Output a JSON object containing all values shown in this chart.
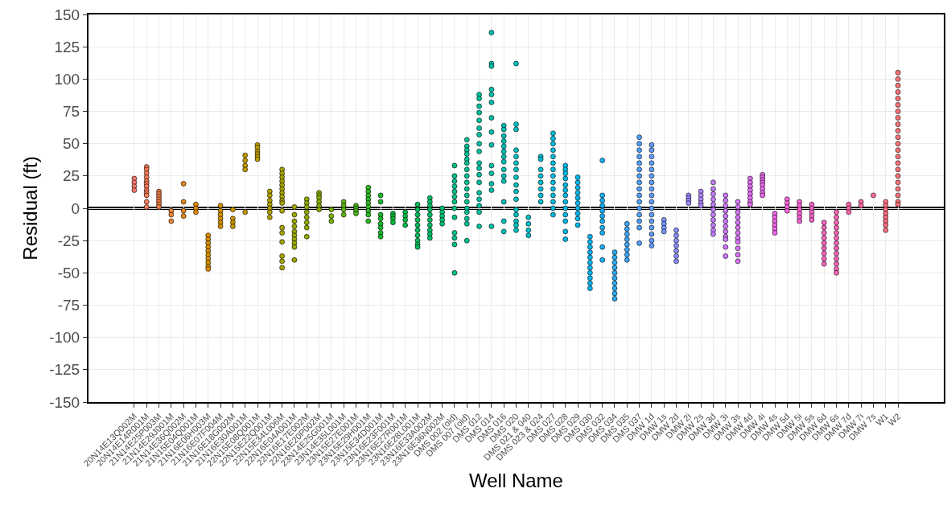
{
  "chart_data": {
    "type": "scatter",
    "xlabel": "Well Name",
    "ylabel": "Residual (ft)",
    "categories": [
      "20N14E13Q002M",
      "20N14E14R001M",
      "21N14E25P003M",
      "21N14E29J001M",
      "21N14E36Q002M",
      "21N15E04Q001M",
      "21N16E06H003M",
      "21N16E07F004M",
      "21N16E18G002M",
      "21N16E30A001M",
      "22N15E08Q001M",
      "22N15E22Q001M",
      "22N15E34L006M",
      "22N16E04A001M",
      "22N16E17E002M",
      "22N16E20P002M",
      "23N14E25G001M",
      "23N14E35L001M",
      "23N15E27E001M",
      "23N15E29H001M",
      "23N15E34D001M",
      "23N16E23F001M",
      "23N16E27R001M",
      "23N16E28L001M",
      "23N16E33A002M",
      "23N16E36N002M",
      "DMS 002 (old)",
      "DMS 007 (old)",
      "DMS 012",
      "DMS 014",
      "DMS 016",
      "DMS 020",
      "DMS 021 & 040",
      "DMS 023 & 024",
      "DMS 027",
      "DMS 028",
      "DMS 029",
      "DMS 030",
      "DMS 032",
      "DMS 034",
      "DMS 035",
      "DMS 037",
      "DMW 1d",
      "DMW 1s",
      "DMW 2d",
      "DMW 2i",
      "DMW 2s",
      "DMW 3d",
      "DMW 3i",
      "DMW 3s",
      "DMW 4d",
      "DMW 4i",
      "DMW 4s",
      "DMW 5d",
      "DMW 5i",
      "DMW 5s",
      "DMW 6d",
      "DMW 6s",
      "DMW 7d",
      "DMW 7i",
      "DMW 7s",
      "W1",
      "W2"
    ],
    "series": [
      {
        "color": "#F8766D",
        "x": [
          "20N14E13Q002M",
          "20N14E13Q002M",
          "20N14E13Q002M",
          "20N14E13Q002M"
        ],
        "values": [
          23,
          20,
          17,
          14
        ]
      },
      {
        "color": "#F37A58",
        "x": [
          "20N14E14R001M",
          "20N14E14R001M",
          "20N14E14R001M",
          "20N14E14R001M",
          "20N14E14R001M",
          "20N14E14R001M",
          "20N14E14R001M",
          "20N14E14R001M",
          "20N14E14R001M",
          "20N14E14R001M",
          "20N14E14R001M",
          "20N14E14R001M"
        ],
        "values": [
          32,
          30,
          27,
          24,
          21,
          19,
          17,
          14,
          12,
          10,
          5,
          1
        ]
      },
      {
        "color": "#EE7E44",
        "x": [
          "21N14E25P003M",
          "21N14E25P003M",
          "21N14E25P003M",
          "21N14E25P003M",
          "21N14E25P003M",
          "21N14E25P003M",
          "21N14E25P003M"
        ],
        "values": [
          13,
          11,
          9,
          7,
          5,
          3,
          1
        ]
      },
      {
        "color": "#E9832F",
        "x": [
          "21N14E29J001M",
          "21N14E29J001M",
          "21N14E29J001M"
        ],
        "values": [
          -2,
          -5,
          -10
        ]
      },
      {
        "color": "#E4871A",
        "x": [
          "21N14E36Q002M",
          "21N14E36Q002M",
          "21N14E36Q002M",
          "21N14E36Q002M"
        ],
        "values": [
          19,
          5,
          -2,
          -6
        ]
      },
      {
        "color": "#DF8B05",
        "x": [
          "21N15E04Q001M",
          "21N15E04Q001M",
          "21N15E04Q001M"
        ],
        "values": [
          3,
          0,
          -3
        ]
      },
      {
        "color": "#D98F00",
        "x": [
          "21N16E06H003M",
          "21N16E06H003M",
          "21N16E06H003M",
          "21N16E06H003M",
          "21N16E06H003M",
          "21N16E06H003M",
          "21N16E06H003M",
          "21N16E06H003M",
          "21N16E06H003M",
          "21N16E06H003M"
        ],
        "values": [
          -21,
          -24,
          -27,
          -30,
          -33,
          -36,
          -39,
          -42,
          -45,
          -47
        ]
      },
      {
        "color": "#D19200",
        "x": [
          "21N16E07F004M",
          "21N16E07F004M",
          "21N16E07F004M",
          "21N16E07F004M",
          "21N16E07F004M",
          "21N16E07F004M"
        ],
        "values": [
          2,
          -2,
          -5,
          -8,
          -11,
          -14
        ]
      },
      {
        "color": "#CA9600",
        "x": [
          "21N16E18G002M",
          "21N16E18G002M",
          "21N16E18G002M",
          "21N16E18G002M"
        ],
        "values": [
          -1,
          -8,
          -11,
          -14
        ]
      },
      {
        "color": "#C29A00",
        "x": [
          "21N16E30A001M",
          "21N16E30A001M",
          "21N16E30A001M",
          "21N16E30A001M",
          "21N16E30A001M"
        ],
        "values": [
          41,
          37,
          33,
          30,
          -3
        ]
      },
      {
        "color": "#BB9D00",
        "x": [
          "22N15E08Q001M",
          "22N15E08Q001M",
          "22N15E08Q001M",
          "22N15E08Q001M",
          "22N15E08Q001M",
          "22N15E08Q001M"
        ],
        "values": [
          49,
          47,
          44,
          42,
          40,
          38
        ]
      },
      {
        "color": "#B1A100",
        "x": [
          "22N15E22Q001M",
          "22N15E22Q001M",
          "22N15E22Q001M",
          "22N15E22Q001M",
          "22N15E22Q001M",
          "22N15E22Q001M",
          "22N15E22Q001M"
        ],
        "values": [
          13,
          10,
          6,
          3,
          0,
          -3,
          -7
        ]
      },
      {
        "color": "#A6A300",
        "x": [
          "22N15E34L006M",
          "22N15E34L006M",
          "22N15E34L006M",
          "22N15E34L006M",
          "22N15E34L006M",
          "22N15E34L006M",
          "22N15E34L006M",
          "22N15E34L006M",
          "22N15E34L006M",
          "22N15E34L006M",
          "22N15E34L006M",
          "22N15E34L006M",
          "22N15E34L006M",
          "22N15E34L006M",
          "22N15E34L006M",
          "22N15E34L006M",
          "22N15E34L006M"
        ],
        "values": [
          30,
          27,
          24,
          21,
          18,
          15,
          12,
          9,
          6,
          4,
          -2,
          -15,
          -19,
          -26,
          -37,
          -41,
          -46
        ]
      },
      {
        "color": "#9BA600",
        "x": [
          "22N16E04A001M",
          "22N16E04A001M",
          "22N16E04A001M",
          "22N16E04A001M",
          "22N16E04A001M",
          "22N16E04A001M",
          "22N16E04A001M",
          "22N16E04A001M",
          "22N16E04A001M",
          "22N16E04A001M"
        ],
        "values": [
          1,
          -5,
          -10,
          -14,
          -18,
          -21,
          -24,
          -27,
          -30,
          -40
        ]
      },
      {
        "color": "#90A900",
        "x": [
          "22N16E17E002M",
          "22N16E17E002M",
          "22N16E17E002M",
          "22N16E17E002M",
          "22N16E17E002M",
          "22N16E17E002M",
          "22N16E17E002M",
          "22N16E17E002M"
        ],
        "values": [
          7,
          4,
          1,
          -3,
          -7,
          -11,
          -15,
          -22
        ]
      },
      {
        "color": "#84AC00",
        "x": [
          "22N16E20P002M",
          "22N16E20P002M",
          "22N16E20P002M",
          "22N16E20P002M",
          "22N16E20P002M",
          "22N16E20P002M"
        ],
        "values": [
          12,
          10,
          8,
          5,
          2,
          -1
        ]
      },
      {
        "color": "#76B103",
        "x": [
          "23N14E25G001M",
          "23N14E25G001M",
          "23N14E25G001M"
        ],
        "values": [
          -1,
          -6,
          -10
        ]
      },
      {
        "color": "#5EB30D",
        "x": [
          "23N14E35L001M",
          "23N14E35L001M",
          "23N14E35L001M",
          "23N14E35L001M"
        ],
        "values": [
          5,
          2,
          -1,
          -5
        ]
      },
      {
        "color": "#47B518",
        "x": [
          "23N15E27E001M",
          "23N15E27E001M",
          "23N15E27E001M",
          "23N15E27E001M"
        ],
        "values": [
          2,
          0,
          -2,
          -4
        ]
      },
      {
        "color": "#2FB723",
        "x": [
          "23N15E29H001M",
          "23N15E29H001M",
          "23N15E29H001M",
          "23N15E29H001M",
          "23N15E29H001M",
          "23N15E29H001M",
          "23N15E29H001M",
          "23N15E29H001M",
          "23N15E29H001M"
        ],
        "values": [
          16,
          13,
          10,
          7,
          4,
          1,
          -2,
          -5,
          -10
        ]
      },
      {
        "color": "#18B82D",
        "x": [
          "23N15E34D001M",
          "23N15E34D001M",
          "23N15E34D001M",
          "23N15E34D001M",
          "23N15E34D001M",
          "23N15E34D001M",
          "23N15E34D001M",
          "23N15E34D001M"
        ],
        "values": [
          10,
          5,
          -5,
          -8,
          -12,
          -15,
          -19,
          -22
        ]
      },
      {
        "color": "#00BA38",
        "x": [
          "23N16E23F001M",
          "23N16E23F001M",
          "23N16E23F001M",
          "23N16E23F001M"
        ],
        "values": [
          -4,
          -6,
          -8,
          -11
        ]
      },
      {
        "color": "#00BB48",
        "x": [
          "23N16E27R001M",
          "23N16E27R001M",
          "23N16E27R001M",
          "23N16E27R001M"
        ],
        "values": [
          -3,
          -6,
          -9,
          -13
        ]
      },
      {
        "color": "#00BC58",
        "x": [
          "23N16E28L001M",
          "23N16E28L001M",
          "23N16E28L001M",
          "23N16E28L001M",
          "23N16E28L001M",
          "23N16E28L001M",
          "23N16E28L001M",
          "23N16E28L001M",
          "23N16E28L001M",
          "23N16E28L001M"
        ],
        "values": [
          3,
          -1,
          -5,
          -9,
          -13,
          -17,
          -21,
          -25,
          -28,
          -30
        ]
      },
      {
        "color": "#00BD67",
        "x": [
          "23N16E33A002M",
          "23N16E33A002M",
          "23N16E33A002M",
          "23N16E33A002M",
          "23N16E33A002M",
          "23N16E33A002M",
          "23N16E33A002M",
          "23N16E33A002M",
          "23N16E33A002M",
          "23N16E33A002M"
        ],
        "values": [
          8,
          5,
          2,
          -1,
          -5,
          -9,
          -13,
          -17,
          -20,
          -23
        ]
      },
      {
        "color": "#00BF77",
        "x": [
          "23N16E36N002M",
          "23N16E36N002M",
          "23N16E36N002M",
          "23N16E36N002M",
          "23N16E36N002M"
        ],
        "values": [
          0,
          -3,
          -6,
          -9,
          -12
        ]
      },
      {
        "color": "#00C087",
        "x": [
          "DMS 002 (old)",
          "DMS 002 (old)",
          "DMS 002 (old)",
          "DMS 002 (old)",
          "DMS 002 (old)",
          "DMS 002 (old)",
          "DMS 002 (old)",
          "DMS 002 (old)",
          "DMS 002 (old)",
          "DMS 002 (old)",
          "DMS 002 (old)",
          "DMS 002 (old)",
          "DMS 002 (old)"
        ],
        "values": [
          33,
          25,
          21,
          17,
          13,
          9,
          5,
          0,
          -7,
          -19,
          -23,
          -28,
          -50
        ]
      },
      {
        "color": "#00C093",
        "x": [
          "DMS 007 (old)",
          "DMS 007 (old)",
          "DMS 007 (old)",
          "DMS 007 (old)",
          "DMS 007 (old)",
          "DMS 007 (old)",
          "DMS 007 (old)",
          "DMS 007 (old)",
          "DMS 007 (old)",
          "DMS 007 (old)",
          "DMS 007 (old)",
          "DMS 007 (old)",
          "DMS 007 (old)",
          "DMS 007 (old)",
          "DMS 007 (old)",
          "DMS 007 (old)",
          "DMS 007 (old)"
        ],
        "values": [
          53,
          48,
          45,
          42,
          38,
          35,
          30,
          25,
          20,
          15,
          10,
          5,
          0,
          -3,
          -8,
          -12,
          -25
        ]
      },
      {
        "color": "#00C09F",
        "x": [
          "DMS 012",
          "DMS 012",
          "DMS 012",
          "DMS 012",
          "DMS 012",
          "DMS 012",
          "DMS 012",
          "DMS 012",
          "DMS 012",
          "DMS 012",
          "DMS 012",
          "DMS 012",
          "DMS 012",
          "DMS 012",
          "DMS 012",
          "DMS 012",
          "DMS 012",
          "DMS 012"
        ],
        "values": [
          88,
          85,
          79,
          74,
          68,
          62,
          57,
          50,
          44,
          35,
          31,
          26,
          20,
          12,
          7,
          2,
          -3,
          -14
        ]
      },
      {
        "color": "#00BFAB",
        "x": [
          "DMS 014",
          "DMS 014",
          "DMS 014",
          "DMS 014",
          "DMS 014",
          "DMS 014",
          "DMS 014",
          "DMS 014",
          "DMS 014",
          "DMS 014",
          "DMS 014",
          "DMS 014",
          "DMS 014",
          "DMS 014"
        ],
        "values": [
          136,
          112,
          110,
          92,
          88,
          82,
          70,
          59,
          49,
          33,
          27,
          19,
          14,
          -14
        ]
      },
      {
        "color": "#00BFB6",
        "x": [
          "DMS 016",
          "DMS 016",
          "DMS 016",
          "DMS 016",
          "DMS 016",
          "DMS 016",
          "DMS 016",
          "DMS 016",
          "DMS 016",
          "DMS 016",
          "DMS 016",
          "DMS 016",
          "DMS 016",
          "DMS 016"
        ],
        "values": [
          64,
          61,
          56,
          52,
          48,
          44,
          40,
          36,
          30,
          25,
          21,
          5,
          -10,
          -18
        ]
      },
      {
        "color": "#00BFBF",
        "x": [
          "DMS 020",
          "DMS 020",
          "DMS 020",
          "DMS 020",
          "DMS 020",
          "DMS 020",
          "DMS 020",
          "DMS 020",
          "DMS 020",
          "DMS 020",
          "DMS 020",
          "DMS 020",
          "DMS 020",
          "DMS 020",
          "DMS 020",
          "DMS 020"
        ],
        "values": [
          112,
          65,
          61,
          45,
          40,
          35,
          30,
          24,
          18,
          13,
          7,
          -1,
          -5,
          -10,
          -13,
          -17
        ]
      },
      {
        "color": "#00BEC8",
        "x": [
          "DMS 021 & 040",
          "DMS 021 & 040",
          "DMS 021 & 040",
          "DMS 021 & 040"
        ],
        "values": [
          -7,
          -12,
          -17,
          -21
        ]
      },
      {
        "color": "#00BCD1",
        "x": [
          "DMS 023 & 024",
          "DMS 023 & 024",
          "DMS 023 & 024",
          "DMS 023 & 024",
          "DMS 023 & 024",
          "DMS 023 & 024",
          "DMS 023 & 024",
          "DMS 023 & 024"
        ],
        "values": [
          40,
          38,
          30,
          25,
          20,
          15,
          10,
          5
        ]
      },
      {
        "color": "#00BADB",
        "x": [
          "DMS 027",
          "DMS 027",
          "DMS 027",
          "DMS 027",
          "DMS 027",
          "DMS 027",
          "DMS 027",
          "DMS 027",
          "DMS 027",
          "DMS 027",
          "DMS 027",
          "DMS 027",
          "DMS 027",
          "DMS 027"
        ],
        "values": [
          58,
          54,
          50,
          45,
          40,
          35,
          30,
          25,
          20,
          15,
          10,
          5,
          0,
          -5
        ]
      },
      {
        "color": "#00B8E5",
        "x": [
          "DMS 028",
          "DMS 028",
          "DMS 028",
          "DMS 028",
          "DMS 028",
          "DMS 028",
          "DMS 028",
          "DMS 028",
          "DMS 028",
          "DMS 028",
          "DMS 028",
          "DMS 028",
          "DMS 028"
        ],
        "values": [
          33,
          30,
          27,
          23,
          18,
          14,
          10,
          5,
          0,
          -5,
          -10,
          -18,
          -24
        ]
      },
      {
        "color": "#00B6EC",
        "x": [
          "DMS 029",
          "DMS 029",
          "DMS 029",
          "DMS 029",
          "DMS 029",
          "DMS 029",
          "DMS 029",
          "DMS 029",
          "DMS 029",
          "DMS 029"
        ],
        "values": [
          24,
          20,
          16,
          12,
          8,
          4,
          0,
          -4,
          -8,
          -13
        ]
      },
      {
        "color": "#05B3F1",
        "x": [
          "DMS 030",
          "DMS 030",
          "DMS 030",
          "DMS 030",
          "DMS 030",
          "DMS 030",
          "DMS 030",
          "DMS 030",
          "DMS 030",
          "DMS 030",
          "DMS 030"
        ],
        "values": [
          -22,
          -26,
          -30,
          -34,
          -38,
          -42,
          -46,
          -50,
          -54,
          -58,
          -62
        ]
      },
      {
        "color": "#17AEF4",
        "x": [
          "DMS 032",
          "DMS 032",
          "DMS 032",
          "DMS 032",
          "DMS 032",
          "DMS 032",
          "DMS 032",
          "DMS 032",
          "DMS 032",
          "DMS 032",
          "DMS 032"
        ],
        "values": [
          37,
          10,
          6,
          2,
          -2,
          -6,
          -10,
          -15,
          -19,
          -30,
          -40
        ]
      },
      {
        "color": "#2AAAF6",
        "x": [
          "DMS 034",
          "DMS 034",
          "DMS 034",
          "DMS 034",
          "DMS 034",
          "DMS 034",
          "DMS 034",
          "DMS 034",
          "DMS 034",
          "DMS 034"
        ],
        "values": [
          -34,
          -38,
          -42,
          -46,
          -50,
          -54,
          -58,
          -62,
          -66,
          -70
        ]
      },
      {
        "color": "#3CA5F9",
        "x": [
          "DMS 035",
          "DMS 035",
          "DMS 035",
          "DMS 035",
          "DMS 035",
          "DMS 035",
          "DMS 035",
          "DMS 035"
        ],
        "values": [
          -12,
          -16,
          -20,
          -24,
          -28,
          -32,
          -36,
          -40
        ]
      },
      {
        "color": "#4FA1FC",
        "x": [
          "DMS 037",
          "DMS 037",
          "DMS 037",
          "DMS 037",
          "DMS 037",
          "DMS 037",
          "DMS 037",
          "DMS 037",
          "DMS 037",
          "DMS 037",
          "DMS 037",
          "DMS 037",
          "DMS 037",
          "DMS 037",
          "DMS 037",
          "DMS 037"
        ],
        "values": [
          55,
          50,
          45,
          40,
          35,
          30,
          25,
          20,
          15,
          10,
          5,
          0,
          -5,
          -10,
          -15,
          -27
        ]
      },
      {
        "color": "#619CFF",
        "x": [
          "DMW 1d",
          "DMW 1d",
          "DMW 1d",
          "DMW 1d",
          "DMW 1d",
          "DMW 1d",
          "DMW 1d",
          "DMW 1d",
          "DMW 1d",
          "DMW 1d",
          "DMW 1d",
          "DMW 1d",
          "DMW 1d",
          "DMW 1d",
          "DMW 1d",
          "DMW 1d",
          "DMW 1d"
        ],
        "values": [
          49,
          45,
          40,
          35,
          30,
          25,
          20,
          15,
          10,
          5,
          0,
          -5,
          -10,
          -15,
          -20,
          -25,
          -29
        ]
      },
      {
        "color": "#7496FF",
        "x": [
          "DMW 1s",
          "DMW 1s",
          "DMW 1s",
          "DMW 1s"
        ],
        "values": [
          -9,
          -12,
          -15,
          -18
        ]
      },
      {
        "color": "#8890FF",
        "x": [
          "DMW 2d",
          "DMW 2d",
          "DMW 2d",
          "DMW 2d",
          "DMW 2d",
          "DMW 2d",
          "DMW 2d"
        ],
        "values": [
          -17,
          -21,
          -25,
          -29,
          -33,
          -37,
          -41
        ]
      },
      {
        "color": "#9B8AFF",
        "x": [
          "DMW 2i",
          "DMW 2i",
          "DMW 2i",
          "DMW 2i"
        ],
        "values": [
          10,
          8,
          6,
          4
        ]
      },
      {
        "color": "#AF84FF",
        "x": [
          "DMW 2s",
          "DMW 2s",
          "DMW 2s",
          "DMW 2s",
          "DMW 2s"
        ],
        "values": [
          13,
          10,
          7,
          4,
          2
        ]
      },
      {
        "color": "#C27EFF",
        "x": [
          "DMW 3d",
          "DMW 3d",
          "DMW 3d",
          "DMW 3d",
          "DMW 3d",
          "DMW 3d",
          "DMW 3d",
          "DMW 3d",
          "DMW 3d",
          "DMW 3d",
          "DMW 3d"
        ],
        "values": [
          20,
          15,
          11,
          7,
          3,
          -1,
          -5,
          -9,
          -13,
          -17,
          -20
        ]
      },
      {
        "color": "#CD78FB",
        "x": [
          "DMW 3i",
          "DMW 3i",
          "DMW 3i",
          "DMW 3i",
          "DMW 3i",
          "DMW 3i",
          "DMW 3i",
          "DMW 3i",
          "DMW 3i",
          "DMW 3i",
          "DMW 3i",
          "DMW 3i"
        ],
        "values": [
          10,
          6,
          2,
          -2,
          -6,
          -10,
          -14,
          -18,
          -22,
          -24,
          -30,
          -37
        ]
      },
      {
        "color": "#D673F6",
        "x": [
          "DMW 3s",
          "DMW 3s",
          "DMW 3s",
          "DMW 3s",
          "DMW 3s",
          "DMW 3s",
          "DMW 3s",
          "DMW 3s",
          "DMW 3s",
          "DMW 3s",
          "DMW 3s",
          "DMW 3s"
        ],
        "values": [
          5,
          1,
          -3,
          -7,
          -11,
          -15,
          -19,
          -23,
          -26,
          -31,
          -36,
          -41
        ]
      },
      {
        "color": "#DF6EF0",
        "x": [
          "DMW 4d",
          "DMW 4d",
          "DMW 4d",
          "DMW 4d",
          "DMW 4d",
          "DMW 4d",
          "DMW 4d",
          "DMW 4d"
        ],
        "values": [
          23,
          20,
          17,
          14,
          11,
          8,
          5,
          3
        ]
      },
      {
        "color": "#E86AEB",
        "x": [
          "DMW 4i",
          "DMW 4i",
          "DMW 4i",
          "DMW 4i",
          "DMW 4i",
          "DMW 4i",
          "DMW 4i",
          "DMW 4i"
        ],
        "values": [
          26,
          24,
          22,
          20,
          18,
          15,
          12,
          10
        ]
      },
      {
        "color": "#F066E6",
        "x": [
          "DMW 4s",
          "DMW 4s",
          "DMW 4s",
          "DMW 4s",
          "DMW 4s",
          "DMW 4s"
        ],
        "values": [
          -4,
          -7,
          -10,
          -13,
          -16,
          -19
        ]
      },
      {
        "color": "#F664DE",
        "x": [
          "DMW 5d",
          "DMW 5d",
          "DMW 5d",
          "DMW 5d"
        ],
        "values": [
          7,
          4,
          1,
          -2
        ]
      },
      {
        "color": "#F864D3",
        "x": [
          "DMW 5i",
          "DMW 5i",
          "DMW 5i",
          "DMW 5i",
          "DMW 5i",
          "DMW 5i"
        ],
        "values": [
          5,
          2,
          -1,
          -4,
          -7,
          -10
        ]
      },
      {
        "color": "#FA64C9",
        "x": [
          "DMW 5s",
          "DMW 5s",
          "DMW 5s",
          "DMW 5s",
          "DMW 5s"
        ],
        "values": [
          3,
          0,
          -3,
          -6,
          -9
        ]
      },
      {
        "color": "#FC64BF",
        "x": [
          "DMW 6d",
          "DMW 6d",
          "DMW 6d",
          "DMW 6d",
          "DMW 6d",
          "DMW 6d",
          "DMW 6d",
          "DMW 6d",
          "DMW 6d"
        ],
        "values": [
          -11,
          -15,
          -19,
          -23,
          -27,
          -31,
          -35,
          -39,
          -43
        ]
      },
      {
        "color": "#FE64B7",
        "x": [
          "DMW 6s",
          "DMW 6s",
          "DMW 6s",
          "DMW 6s",
          "DMW 6s",
          "DMW 6s",
          "DMW 6s",
          "DMW 6s",
          "DMW 6s",
          "DMW 6s",
          "DMW 6s",
          "DMW 6s",
          "DMW 6s"
        ],
        "values": [
          -3,
          -7,
          -11,
          -15,
          -19,
          -23,
          -27,
          -31,
          -35,
          -39,
          -43,
          -47,
          -50
        ]
      },
      {
        "color": "#FF65AD",
        "x": [
          "DMW 7d",
          "DMW 7d",
          "DMW 7d"
        ],
        "values": [
          3,
          0,
          -3
        ]
      },
      {
        "color": "#FD68A0",
        "x": [
          "DMW 7i",
          "DMW 7i"
        ],
        "values": [
          5,
          2
        ]
      },
      {
        "color": "#FC6C92",
        "x": [
          "DMW 7s"
        ],
        "values": [
          10
        ]
      },
      {
        "color": "#FB6F84",
        "x": [
          "W1",
          "W1",
          "W1",
          "W1",
          "W1",
          "W1",
          "W1",
          "W1"
        ],
        "values": [
          5,
          2,
          -1,
          -4,
          -7,
          -10,
          -13,
          -17
        ]
      },
      {
        "color": "#F97377",
        "x": [
          "W2",
          "W2",
          "W2",
          "W2",
          "W2",
          "W2",
          "W2",
          "W2",
          "W2",
          "W2",
          "W2",
          "W2",
          "W2",
          "W2",
          "W2",
          "W2",
          "W2",
          "W2",
          "W2",
          "W2",
          "W2",
          "W2"
        ],
        "values": [
          105,
          100,
          95,
          90,
          85,
          80,
          75,
          70,
          65,
          60,
          55,
          50,
          45,
          40,
          35,
          30,
          25,
          20,
          15,
          10,
          5,
          3
        ]
      }
    ],
    "ylim": [
      -150,
      150
    ],
    "yticks": [
      -150,
      -125,
      -100,
      -75,
      -50,
      -25,
      0,
      25,
      50,
      75,
      100,
      125,
      150
    ],
    "ref_lines": [
      {
        "axis": "y",
        "value": 0,
        "color": "#000000"
      }
    ],
    "grid": true,
    "marker": "circle"
  }
}
